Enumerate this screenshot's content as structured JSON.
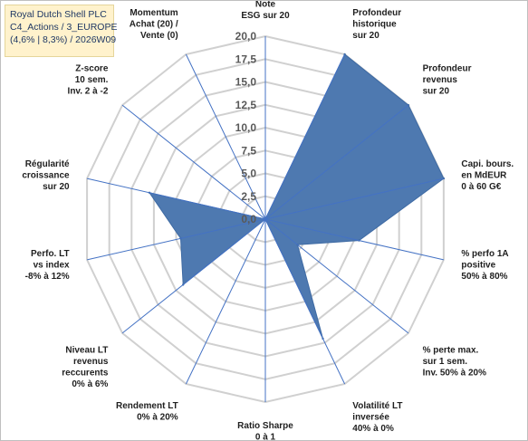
{
  "title_box": {
    "line1": "Royal Dutch Shell PLC",
    "line2": "C4_Actions / 3_EUROPE",
    "line3": "(4,6% | 8,3%) / 2026W09"
  },
  "colors": {
    "fill": "#4e79b0",
    "grid": "#d0d0d0",
    "spoke": "#4472c4",
    "label": "#1f1f1f",
    "title_bg": "#fff2cc"
  },
  "chart_data": {
    "type": "radar",
    "title": "",
    "rlim": [
      0,
      20
    ],
    "ticks": [
      "0,0",
      "2,5",
      "5,0",
      "7,5",
      "10,0",
      "12,5",
      "15,0",
      "17,5",
      "20,0"
    ],
    "grid": true,
    "axes": [
      {
        "label": [
          "Note",
          "ESG sur 20"
        ],
        "value": 0
      },
      {
        "label": [
          "Profondeur",
          "historique",
          "sur 20"
        ],
        "value": 20
      },
      {
        "label": [
          "Profondeur",
          "revenus",
          "sur 20"
        ],
        "value": 20
      },
      {
        "label": [
          "Capi. bours.",
          "en MdEUR",
          "0 à 60 G€"
        ],
        "value": 20
      },
      {
        "label": [
          "% perfo 1A",
          "positive",
          "50% à 80%"
        ],
        "value": 10.5
      },
      {
        "label": [
          "% perte max.",
          "sur 1 sem.",
          "Inv. 50% à 20%"
        ],
        "value": 4.5
      },
      {
        "label": [
          "Volatilité LT",
          "inversée",
          "40% à 0%"
        ],
        "value": 14.5
      },
      {
        "label": [
          "Ratio Sharpe",
          "0 à 1"
        ],
        "value": 0
      },
      {
        "label": [
          "Rendement LT",
          "0% à 20%"
        ],
        "value": 0
      },
      {
        "label": [
          "Niveau LT",
          "revenus",
          "reccurents",
          "0% à 6%"
        ],
        "value": 11.5
      },
      {
        "label": [
          "Perfo. LT",
          "vs index",
          "-8% à 12%"
        ],
        "value": 9.5
      },
      {
        "label": [
          "Régularité",
          "croissance",
          "sur 20"
        ],
        "value": 13
      },
      {
        "label": [
          "Z-score",
          "10 sem.",
          "Inv. 2 à -2"
        ],
        "value": 0
      },
      {
        "label": [
          "Momentum",
          "Achat (20) /",
          "Vente (0)"
        ],
        "value": 0
      }
    ]
  }
}
